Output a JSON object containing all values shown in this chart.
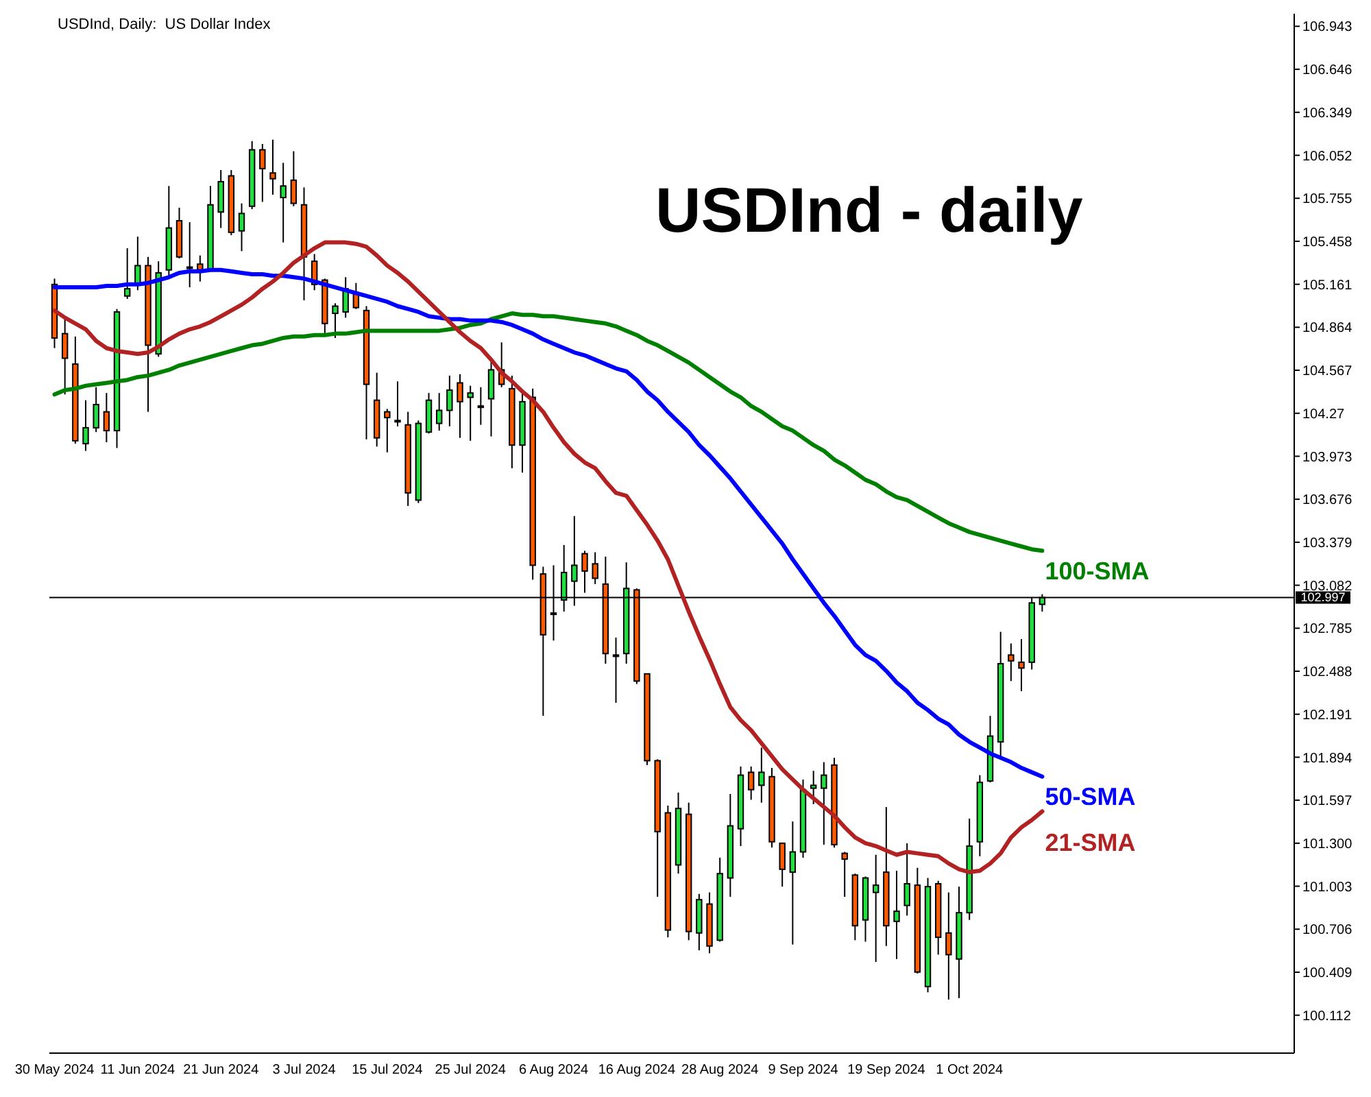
{
  "chart_data": {
    "type": "candlestick",
    "title": "USDInd, Daily:  US Dollar Index",
    "subtitle": "USDInd - daily",
    "categories": [
      "30 May 2024",
      null,
      null,
      null,
      null,
      null,
      null,
      null,
      "11 Jun 2024",
      null,
      null,
      null,
      null,
      null,
      null,
      null,
      "21 Jun 2024",
      null,
      null,
      null,
      null,
      null,
      null,
      null,
      "3 Jul 2024",
      null,
      null,
      null,
      null,
      null,
      null,
      null,
      "15 Jul 2024",
      null,
      null,
      null,
      null,
      null,
      null,
      null,
      "25 Jul 2024",
      null,
      null,
      null,
      null,
      null,
      null,
      null,
      "6 Aug 2024",
      null,
      null,
      null,
      null,
      null,
      null,
      null,
      "16 Aug 2024",
      null,
      null,
      null,
      null,
      null,
      null,
      null,
      "28 Aug 2024",
      null,
      null,
      null,
      null,
      null,
      null,
      null,
      "9 Sep 2024",
      null,
      null,
      null,
      null,
      null,
      null,
      null,
      "19 Sep 2024",
      null,
      null,
      null,
      null,
      null,
      null,
      null,
      "1 Oct 2024",
      null,
      null,
      null,
      null,
      null,
      null,
      null
    ],
    "ohlc": [
      [
        105.16,
        105.2,
        104.72,
        104.79
      ],
      [
        104.82,
        104.93,
        104.4,
        104.65
      ],
      [
        104.61,
        104.8,
        104.06,
        104.08
      ],
      [
        104.06,
        104.36,
        104.01,
        104.17
      ],
      [
        104.17,
        104.45,
        104.14,
        104.33
      ],
      [
        104.28,
        104.41,
        104.07,
        104.15
      ],
      [
        104.15,
        104.99,
        104.03,
        104.97
      ],
      [
        105.08,
        105.41,
        105.06,
        105.13
      ],
      [
        105.16,
        105.49,
        105.12,
        105.29
      ],
      [
        105.29,
        105.35,
        104.28,
        104.74
      ],
      [
        104.68,
        105.32,
        104.66,
        105.24
      ],
      [
        105.26,
        105.84,
        105.22,
        105.55
      ],
      [
        105.6,
        105.69,
        105.34,
        105.35
      ],
      [
        105.28,
        105.59,
        105.14,
        105.28
      ],
      [
        105.3,
        105.36,
        105.18,
        105.26
      ],
      [
        105.26,
        105.84,
        105.25,
        105.71
      ],
      [
        105.66,
        105.95,
        105.55,
        105.87
      ],
      [
        105.91,
        105.95,
        105.5,
        105.52
      ],
      [
        105.53,
        105.72,
        105.39,
        105.65
      ],
      [
        105.7,
        106.15,
        105.68,
        106.09
      ],
      [
        106.09,
        106.13,
        105.73,
        105.96
      ],
      [
        105.93,
        106.16,
        105.78,
        105.89
      ],
      [
        105.76,
        106.0,
        105.45,
        105.84
      ],
      [
        105.88,
        106.08,
        105.7,
        105.72
      ],
      [
        105.71,
        105.83,
        105.05,
        105.35
      ],
      [
        105.32,
        105.37,
        105.12,
        105.16
      ],
      [
        105.19,
        105.2,
        104.82,
        104.89
      ],
      [
        104.96,
        105.03,
        104.79,
        105.01
      ],
      [
        104.97,
        105.21,
        104.93,
        105.13
      ],
      [
        105.1,
        105.17,
        104.99,
        105.0
      ],
      [
        104.98,
        105.01,
        104.09,
        104.47
      ],
      [
        104.36,
        104.55,
        104.04,
        104.1
      ],
      [
        104.28,
        104.3,
        104.0,
        104.24
      ],
      [
        104.22,
        104.49,
        104.18,
        104.22
      ],
      [
        104.19,
        104.28,
        103.63,
        103.72
      ],
      [
        103.67,
        104.22,
        103.65,
        104.2
      ],
      [
        104.14,
        104.41,
        104.13,
        104.36
      ],
      [
        104.2,
        104.41,
        104.15,
        104.29
      ],
      [
        104.29,
        104.53,
        104.18,
        104.43
      ],
      [
        104.48,
        104.54,
        104.1,
        104.35
      ],
      [
        104.38,
        104.46,
        104.08,
        104.41
      ],
      [
        104.32,
        104.45,
        104.19,
        104.32
      ],
      [
        104.37,
        104.64,
        104.11,
        104.57
      ],
      [
        104.57,
        104.76,
        104.45,
        104.47
      ],
      [
        104.44,
        104.53,
        103.89,
        104.05
      ],
      [
        104.05,
        104.41,
        103.86,
        104.35
      ],
      [
        104.38,
        104.44,
        103.12,
        103.22
      ],
      [
        103.16,
        103.21,
        102.18,
        102.74
      ],
      [
        102.89,
        103.22,
        102.7,
        102.89
      ],
      [
        102.98,
        103.36,
        102.9,
        103.17
      ],
      [
        103.11,
        103.56,
        102.94,
        103.22
      ],
      [
        103.3,
        103.32,
        103.03,
        103.18
      ],
      [
        103.23,
        103.31,
        103.09,
        103.13
      ],
      [
        103.09,
        103.28,
        102.54,
        102.61
      ],
      [
        102.6,
        102.72,
        102.27,
        102.6
      ],
      [
        102.61,
        103.24,
        102.54,
        103.06
      ],
      [
        103.05,
        103.06,
        102.4,
        102.42
      ],
      [
        102.47,
        102.47,
        101.84,
        101.87
      ],
      [
        101.87,
        101.88,
        100.93,
        101.38
      ],
      [
        101.51,
        101.56,
        100.65,
        100.7
      ],
      [
        101.15,
        101.65,
        101.09,
        101.54
      ],
      [
        101.5,
        101.58,
        100.63,
        100.69
      ],
      [
        100.68,
        100.95,
        100.56,
        100.91
      ],
      [
        100.88,
        100.96,
        100.54,
        100.59
      ],
      [
        100.63,
        101.2,
        100.62,
        101.09
      ],
      [
        101.06,
        101.64,
        100.93,
        101.42
      ],
      [
        101.4,
        101.83,
        101.28,
        101.77
      ],
      [
        101.79,
        101.83,
        101.6,
        101.67
      ],
      [
        101.7,
        101.96,
        101.58,
        101.79
      ],
      [
        101.76,
        101.82,
        101.27,
        101.31
      ],
      [
        101.3,
        101.3,
        101.0,
        101.12
      ],
      [
        101.1,
        101.45,
        100.6,
        101.24
      ],
      [
        101.24,
        101.74,
        101.2,
        101.67
      ],
      [
        101.68,
        101.8,
        101.57,
        101.7
      ],
      [
        101.68,
        101.86,
        101.29,
        101.77
      ],
      [
        101.84,
        101.89,
        101.27,
        101.29
      ],
      [
        101.23,
        101.24,
        100.93,
        101.19
      ],
      [
        101.08,
        101.09,
        100.63,
        100.73
      ],
      [
        100.77,
        101.07,
        100.62,
        101.06
      ],
      [
        100.96,
        101.22,
        100.48,
        101.01
      ],
      [
        101.1,
        101.55,
        100.59,
        100.73
      ],
      [
        100.76,
        101.11,
        100.5,
        100.83
      ],
      [
        100.87,
        101.3,
        100.8,
        101.02
      ],
      [
        101.01,
        101.13,
        100.4,
        100.41
      ],
      [
        100.31,
        101.06,
        100.27,
        101.0
      ],
      [
        101.02,
        101.04,
        100.53,
        100.65
      ],
      [
        100.68,
        100.96,
        100.22,
        100.53
      ],
      [
        100.5,
        101.0,
        100.23,
        100.82
      ],
      [
        100.82,
        101.47,
        100.77,
        101.28
      ],
      [
        101.31,
        101.77,
        101.21,
        101.72
      ],
      [
        101.73,
        102.18,
        101.72,
        102.04
      ],
      [
        102.0,
        102.76,
        101.89,
        102.54
      ],
      [
        102.6,
        102.68,
        102.42,
        102.56
      ],
      [
        102.55,
        102.71,
        102.35,
        102.51
      ],
      [
        102.55,
        103.0,
        102.5,
        102.96
      ],
      [
        102.95,
        103.02,
        102.9,
        102.997
      ]
    ],
    "colors": [
      "#ff5a00",
      "#ff5a00",
      "#ff5a00",
      "#20e040",
      "#20e040",
      "#ff5a00",
      "#20e040",
      "#20e040",
      "#20e040",
      "#ff5a00",
      "#20e040",
      "#20e040",
      "#ff5a00",
      "#ff5a00",
      "#ff5a00",
      "#20e040",
      "#20e040",
      "#ff5a00",
      "#20e040",
      "#20e040",
      "#ff5a00",
      "#ff5a00",
      "#20e040",
      "#ff5a00",
      "#ff5a00",
      "#ff5a00",
      "#ff5a00",
      "#20e040",
      "#20e040",
      "#ff5a00",
      "#ff5a00",
      "#ff5a00",
      "#ff5a00",
      "#ff5a00",
      "#ff5a00",
      "#20e040",
      "#20e040",
      "#20e040",
      "#20e040",
      "#ff5a00",
      "#20e040",
      "#ff5a00",
      "#20e040",
      "#ff5a00",
      "#ff5a00",
      "#20e040",
      "#ff5a00",
      "#ff5a00",
      "#ff5a00",
      "#20e040",
      "#20e040",
      "#ff5a00",
      "#ff5a00",
      "#ff5a00",
      "#ff5a00",
      "#20e040",
      "#ff5a00",
      "#ff5a00",
      "#ff5a00",
      "#ff5a00",
      "#20e040",
      "#ff5a00",
      "#20e040",
      "#ff5a00",
      "#20e040",
      "#20e040",
      "#20e040",
      "#ff5a00",
      "#20e040",
      "#ff5a00",
      "#ff5a00",
      "#20e040",
      "#20e040",
      "#20e040",
      "#20e040",
      "#ff5a00",
      "#ff5a00",
      "#ff5a00",
      "#20e040",
      "#20e040",
      "#ff5a00",
      "#20e040",
      "#20e040",
      "#ff5a00",
      "#20e040",
      "#ff5a00",
      "#ff5a00",
      "#20e040",
      "#20e040",
      "#20e040",
      "#20e040",
      "#20e040",
      "#ff5a00",
      "#ff5a00",
      "#20e040",
      "#20e040"
    ],
    "series": [
      {
        "type": "line",
        "name": "100-SMA",
        "color": "#008000",
        "values": [
          104.4,
          104.43,
          104.44,
          104.46,
          104.47,
          104.48,
          104.49,
          104.5,
          104.52,
          104.53,
          104.55,
          104.57,
          104.6,
          104.62,
          104.64,
          104.66,
          104.68,
          104.7,
          104.72,
          104.74,
          104.75,
          104.77,
          104.79,
          104.8,
          104.8,
          104.81,
          104.81,
          104.82,
          104.82,
          104.83,
          104.84,
          104.84,
          104.84,
          104.84,
          104.84,
          104.84,
          104.84,
          104.84,
          104.85,
          104.86,
          104.88,
          104.89,
          104.92,
          104.94,
          104.96,
          104.95,
          104.95,
          104.94,
          104.94,
          104.93,
          104.92,
          104.91,
          104.9,
          104.89,
          104.87,
          104.84,
          104.81,
          104.77,
          104.74,
          104.7,
          104.66,
          104.62,
          104.57,
          104.52,
          104.47,
          104.42,
          104.38,
          104.32,
          104.28,
          104.23,
          104.18,
          104.15,
          104.1,
          104.05,
          104.01,
          103.95,
          103.91,
          103.86,
          103.81,
          103.78,
          103.73,
          103.69,
          103.67,
          103.63,
          103.59,
          103.55,
          103.51,
          103.48,
          103.45,
          103.43,
          103.41,
          103.39,
          103.37,
          103.35,
          103.33,
          103.32
        ]
      },
      {
        "type": "line",
        "name": "50-SMA",
        "color": "#0000ff",
        "values": [
          105.14,
          105.14,
          105.14,
          105.14,
          105.14,
          105.15,
          105.15,
          105.16,
          105.16,
          105.17,
          105.19,
          105.21,
          105.24,
          105.25,
          105.25,
          105.26,
          105.26,
          105.25,
          105.24,
          105.23,
          105.23,
          105.22,
          105.22,
          105.21,
          105.2,
          105.18,
          105.16,
          105.14,
          105.12,
          105.1,
          105.08,
          105.06,
          105.04,
          105.01,
          104.99,
          104.97,
          104.94,
          104.93,
          104.92,
          104.92,
          104.91,
          104.91,
          104.91,
          104.9,
          104.88,
          104.85,
          104.82,
          104.78,
          104.75,
          104.72,
          104.69,
          104.67,
          104.64,
          104.61,
          104.58,
          104.56,
          104.5,
          104.42,
          104.36,
          104.28,
          104.21,
          104.14,
          104.05,
          103.98,
          103.9,
          103.82,
          103.73,
          103.64,
          103.55,
          103.46,
          103.37,
          103.26,
          103.16,
          103.06,
          102.96,
          102.87,
          102.77,
          102.67,
          102.6,
          102.56,
          102.49,
          102.41,
          102.35,
          102.27,
          102.22,
          102.16,
          102.12,
          102.05,
          102.0,
          101.96,
          101.92,
          101.89,
          101.86,
          101.82,
          101.79,
          101.76
        ]
      },
      {
        "type": "line",
        "name": "21-SMA",
        "color": "#b22222",
        "values": [
          104.98,
          104.93,
          104.89,
          104.85,
          104.77,
          104.72,
          104.7,
          104.69,
          104.68,
          104.69,
          104.73,
          104.78,
          104.82,
          104.85,
          104.87,
          104.9,
          104.94,
          104.98,
          105.02,
          105.07,
          105.13,
          105.18,
          105.24,
          105.31,
          105.36,
          105.41,
          105.45,
          105.45,
          105.45,
          105.44,
          105.42,
          105.36,
          105.29,
          105.24,
          105.18,
          105.11,
          105.04,
          104.97,
          104.9,
          104.83,
          104.77,
          104.72,
          104.64,
          104.55,
          104.49,
          104.42,
          104.36,
          104.28,
          104.17,
          104.07,
          103.99,
          103.93,
          103.89,
          103.8,
          103.72,
          103.7,
          103.6,
          103.5,
          103.39,
          103.26,
          103.08,
          102.9,
          102.73,
          102.57,
          102.4,
          102.24,
          102.15,
          102.08,
          101.99,
          101.9,
          101.81,
          101.74,
          101.67,
          101.61,
          101.55,
          101.49,
          101.41,
          101.34,
          101.3,
          101.28,
          101.25,
          101.22,
          101.24,
          101.23,
          101.22,
          101.21,
          101.16,
          101.12,
          101.1,
          101.11,
          101.16,
          101.23,
          101.34,
          101.41,
          101.46,
          101.52
        ]
      }
    ],
    "ylim": [
      99.85,
      107.03
    ],
    "yticks": [
      100.112,
      100.409,
      100.706,
      101.003,
      {
        "value": 101.3,
        "label": "101.300"
      },
      101.597,
      101.894,
      102.191,
      102.488,
      102.785,
      103.082,
      103.379,
      103.676,
      103.973,
      104.27,
      104.567,
      104.864,
      105.161,
      105.458,
      105.755,
      106.052,
      106.349,
      106.646,
      106.943
    ],
    "ref_lines": [
      {
        "axis": "y",
        "value": 102.997,
        "label": "102.997",
        "color": "#000000"
      }
    ]
  }
}
